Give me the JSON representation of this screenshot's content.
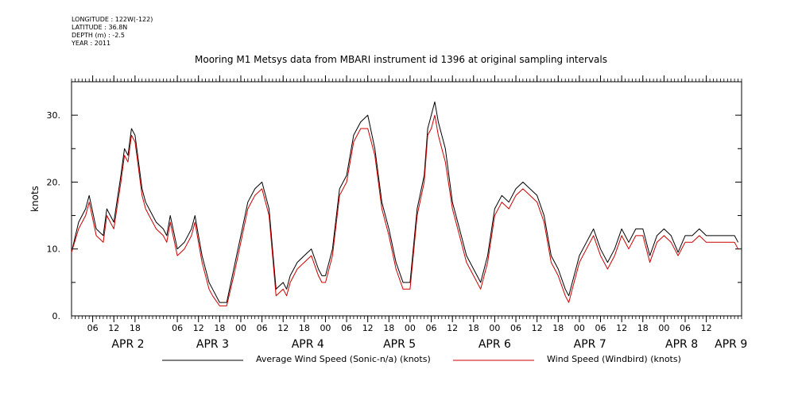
{
  "meta": {
    "longitude": "LONGITUDE : 122W(-122)",
    "latitude": "LATITUDE : 36.8N",
    "depth": "DEPTH (m) : -2.5",
    "year": "YEAR : 2011"
  },
  "chart_data": {
    "type": "line",
    "title": "Mooring M1 Metsys data from MBARI instrument id 1396 at original sampling intervals",
    "ylabel": "knots",
    "xlabel": "",
    "ylim": [
      0,
      35
    ],
    "xlim_hours": [
      0,
      190
    ],
    "y_ticks": [
      0,
      10,
      20,
      30
    ],
    "y_tick_labels": [
      "0.",
      "10.",
      "20.",
      "30."
    ],
    "x_ticks_hours": [
      6,
      12,
      18,
      30,
      36,
      42,
      48,
      54,
      60,
      66,
      72,
      78,
      84,
      90,
      96,
      102,
      108,
      114,
      120,
      126,
      132,
      138,
      144,
      150,
      156,
      162,
      168,
      174,
      180
    ],
    "x_tick_labels": [
      "06",
      "12",
      "18",
      "06",
      "12",
      "18",
      "00",
      "06",
      "12",
      "18",
      "00",
      "06",
      "12",
      "18",
      "00",
      "06",
      "12",
      "18",
      "00",
      "06",
      "12",
      "18",
      "00",
      "06",
      "12",
      "18",
      "00",
      "06",
      "12"
    ],
    "day_labels": [
      {
        "label": "APR  2",
        "hour": 16
      },
      {
        "label": "APR  3",
        "hour": 40
      },
      {
        "label": "APR  4",
        "hour": 67
      },
      {
        "label": "APR  5",
        "hour": 93
      },
      {
        "label": "APR  6",
        "hour": 120
      },
      {
        "label": "APR  7",
        "hour": 147
      },
      {
        "label": "APR  8",
        "hour": 173
      },
      {
        "label": "APR  9",
        "hour": 187
      }
    ],
    "grid": false,
    "legend": "bottom",
    "series": [
      {
        "name": "Average Wind Speed (Sonic-n/a) (knots)",
        "color": "#000000",
        "x": [
          0,
          2,
          4,
          5,
          7,
          9,
          10,
          12,
          14,
          15,
          16,
          17,
          18,
          19,
          20,
          21,
          22,
          24,
          26,
          27,
          28,
          30,
          32,
          34,
          35,
          36,
          37,
          38,
          39,
          40,
          42,
          44,
          46,
          48,
          50,
          52,
          54,
          56,
          57,
          58,
          60,
          61,
          62,
          64,
          66,
          68,
          70,
          71,
          72,
          73,
          74,
          76,
          78,
          80,
          82,
          84,
          86,
          88,
          90,
          92,
          94,
          96,
          98,
          100,
          101,
          102,
          103,
          104,
          106,
          108,
          110,
          112,
          114,
          116,
          117,
          118,
          120,
          122,
          124,
          126,
          128,
          130,
          132,
          134,
          136,
          138,
          140,
          141,
          142,
          143,
          144,
          146,
          148,
          150,
          152,
          154,
          156,
          158,
          160,
          162,
          164,
          166,
          168,
          170,
          172,
          174,
          176,
          178,
          180,
          182,
          184,
          186,
          188,
          189
        ],
        "y": [
          9.5,
          14,
          16,
          18,
          13,
          12,
          16,
          14,
          21,
          25,
          24,
          28,
          27,
          23,
          19,
          17,
          16,
          14,
          13,
          12,
          15,
          10,
          11,
          13,
          15,
          12,
          9,
          7,
          5,
          4,
          2,
          2,
          7,
          12,
          17,
          19,
          20,
          16,
          10,
          4,
          5,
          4,
          6,
          8,
          9,
          10,
          7,
          6,
          6,
          8,
          10,
          19,
          21,
          27,
          29,
          30,
          25,
          17,
          13,
          8,
          5,
          5,
          16,
          21,
          28,
          30,
          32,
          29,
          25,
          17,
          13,
          9,
          7,
          5,
          7,
          9,
          16,
          18,
          17,
          19,
          20,
          19,
          18,
          15,
          9,
          7,
          4,
          3,
          5,
          7,
          9,
          11,
          13,
          10,
          8,
          10,
          13,
          11,
          13,
          13,
          9,
          12,
          13,
          12,
          9.5,
          12,
          12,
          13,
          12,
          12,
          12,
          12,
          12,
          11
        ],
        "gap": [
          [
            44,
            62
          ]
        ]
      },
      {
        "name": "Wind Speed (Windbird) (knots)",
        "color": "#cc0000",
        "x": [
          0,
          2,
          4,
          5,
          7,
          9,
          10,
          12,
          14,
          15,
          16,
          17,
          18,
          19,
          20,
          21,
          22,
          24,
          26,
          27,
          28,
          30,
          32,
          34,
          35,
          36,
          37,
          38,
          39,
          40,
          42,
          44,
          46,
          48,
          50,
          52,
          54,
          56,
          57,
          58,
          60,
          61,
          62,
          64,
          66,
          68,
          70,
          71,
          72,
          73,
          74,
          76,
          78,
          80,
          82,
          84,
          86,
          88,
          90,
          92,
          94,
          96,
          98,
          100,
          101,
          102,
          103,
          104,
          106,
          108,
          110,
          112,
          114,
          116,
          117,
          118,
          120,
          122,
          124,
          126,
          128,
          130,
          132,
          134,
          136,
          138,
          140,
          141,
          142,
          143,
          144,
          146,
          148,
          150,
          152,
          154,
          156,
          158,
          160,
          162,
          164,
          166,
          168,
          170,
          172,
          174,
          176,
          178,
          180,
          182,
          184,
          186,
          188,
          189
        ],
        "y": [
          9.5,
          13,
          15,
          17,
          12,
          11,
          15,
          13,
          20,
          24,
          23,
          27,
          26,
          22,
          18,
          16,
          15,
          13,
          12,
          11,
          14,
          9,
          10,
          12,
          14,
          11,
          8,
          6,
          4,
          3,
          1.5,
          1.5,
          6,
          11,
          16,
          18,
          19,
          15,
          9,
          3,
          4,
          3,
          5,
          7,
          8,
          9,
          6,
          5,
          5,
          7,
          9,
          18,
          20,
          26,
          28,
          28,
          24,
          16,
          12,
          7,
          4,
          4,
          15,
          20,
          27,
          28,
          30,
          27,
          23,
          16,
          12,
          8,
          6,
          4,
          6,
          8,
          15,
          17,
          16,
          18,
          19,
          18,
          17,
          14,
          8,
          6,
          3,
          2,
          4,
          6,
          8,
          10,
          12,
          9,
          7,
          9,
          12,
          10,
          12,
          12,
          8,
          11,
          12,
          11,
          9,
          11,
          11,
          12,
          11,
          11,
          11,
          11,
          11,
          10
        ],
        "gap": [
          [
            44,
            62
          ]
        ]
      }
    ]
  }
}
